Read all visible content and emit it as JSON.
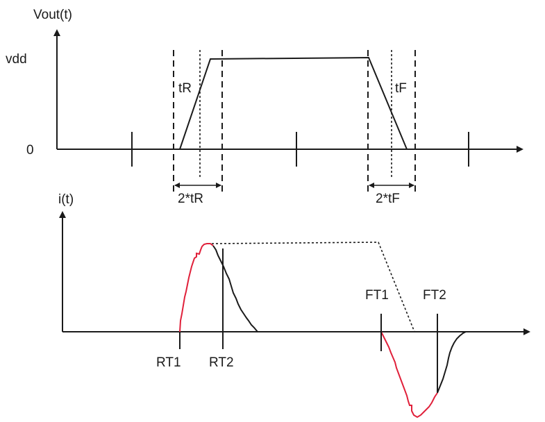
{
  "top_plot": {
    "y_axis_label": "Vout(t)",
    "level_high": "vdd",
    "level_low": "0",
    "rise_label": "tR",
    "fall_label": "tF",
    "rise_window_label": "2*tR",
    "fall_window_label": "2*tF"
  },
  "bottom_plot": {
    "y_axis_label": "i(t)",
    "rt1_label": "RT1",
    "rt2_label": "RT2",
    "ft1_label": "FT1",
    "ft2_label": "FT2"
  },
  "colors": {
    "stroke": "#1a1a1a",
    "highlight": "#e0203a"
  }
}
